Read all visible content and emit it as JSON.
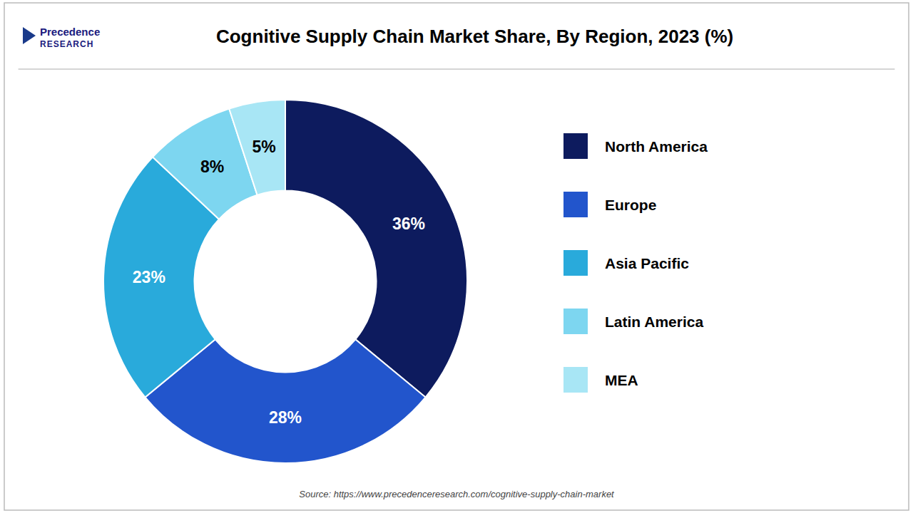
{
  "chart_data": {
    "type": "donut",
    "title": "Cognitive Supply Chain Market Share, By Region, 2023 (%)",
    "categories": [
      "North America",
      "Europe",
      "Asia Pacific",
      "Latin America",
      "MEA"
    ],
    "values": [
      36,
      28,
      23,
      8,
      5
    ],
    "value_labels": [
      "36%",
      "28%",
      "23%",
      "8%",
      "5%"
    ],
    "colors": [
      "#0d1b5e",
      "#2255cc",
      "#29aadb",
      "#7dd6f0",
      "#a8e6f5"
    ],
    "data_labels": true,
    "legend": "right",
    "annotations": [
      "Precedence",
      "RESEARCH",
      "Source: https://www.precedenceresearch.com/cognitive-supply-chain-market"
    ]
  }
}
